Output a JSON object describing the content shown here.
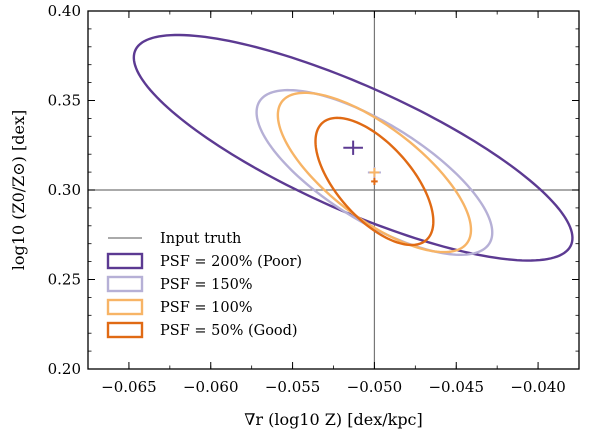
{
  "chart_data": {
    "type": "scatter",
    "xlabel": "∇r (log10 Z) [dex/kpc]",
    "ylabel": "log10 (Z0/Z⊙) [dex]",
    "xlim": [
      -0.0675,
      -0.0375
    ],
    "ylim": [
      0.2,
      0.4
    ],
    "x_ticks": [
      -0.065,
      -0.06,
      -0.055,
      -0.05,
      -0.045,
      -0.04
    ],
    "x_tick_labels": [
      "−0.065",
      "−0.060",
      "−0.055",
      "−0.050",
      "−0.045",
      "−0.040"
    ],
    "y_ticks": [
      0.2,
      0.25,
      0.3,
      0.35,
      0.4
    ],
    "y_tick_labels": [
      "0.20",
      "0.25",
      "0.30",
      "0.35",
      "0.40"
    ],
    "grid": false,
    "legend_position": "lower-left",
    "input_truth": {
      "label": "Input truth",
      "x": -0.05,
      "y": 0.3,
      "color": "#777777"
    },
    "series": [
      {
        "name": "PSF = 200% (Poor)",
        "color": "#5c3a92",
        "center": [
          -0.0513,
          0.3236
        ],
        "err_x": 0.0006,
        "err_y": 0.004,
        "ellipse": {
          "a": 0.0134,
          "b": 0.063,
          "r": -0.8
        }
      },
      {
        "name": "PSF = 150%",
        "color": "#b6b0d6",
        "center": [
          -0.05,
          0.3098
        ],
        "err_x": 0.0004,
        "err_y": 0.003,
        "ellipse": {
          "a": 0.0072,
          "b": 0.046,
          "r": -0.73
        }
      },
      {
        "name": "PSF = 100%",
        "color": "#f7b466",
        "center": [
          -0.05,
          0.3098
        ],
        "err_x": 0.0003,
        "err_y": 0.0025,
        "ellipse": {
          "a": 0.0059,
          "b": 0.0445,
          "r": -0.72
        }
      },
      {
        "name": "PSF = 50% (Good)",
        "color": "#e06a14",
        "center": [
          -0.05,
          0.3048
        ],
        "err_x": 0.0002,
        "err_y": 0.002,
        "ellipse": {
          "a": 0.0036,
          "b": 0.0355,
          "r": -0.63
        }
      }
    ]
  }
}
